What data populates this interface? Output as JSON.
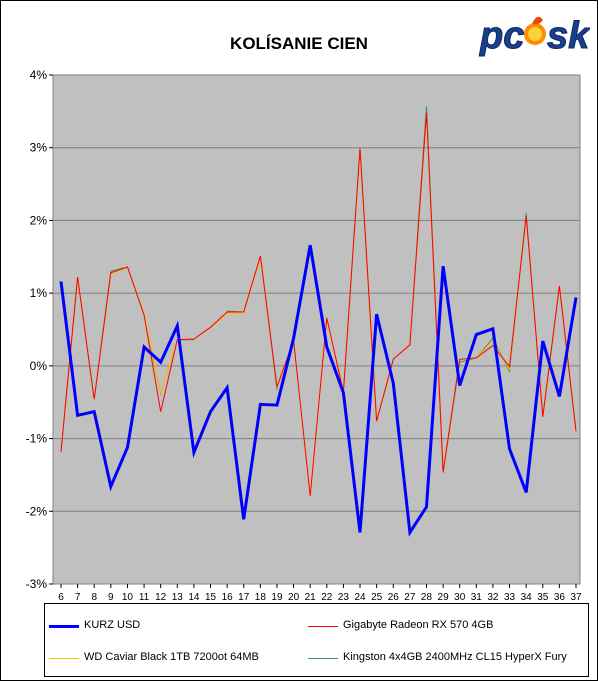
{
  "chart_data": {
    "type": "line",
    "title": "KOLÍSANIE CIEN",
    "logo_text": "pc sk",
    "xlabel": "",
    "ylabel": "",
    "ylim": [
      -3,
      4
    ],
    "y_ticks": [
      "-3%",
      "-2%",
      "-1%",
      "0%",
      "1%",
      "2%",
      "3%",
      "4%"
    ],
    "grid": "horizontal",
    "legend_position": "bottom",
    "categories": [
      "6",
      "7",
      "8",
      "9",
      "10",
      "11",
      "12",
      "13",
      "14",
      "15",
      "16",
      "17",
      "18",
      "19",
      "20",
      "21",
      "22",
      "23",
      "24",
      "25",
      "26",
      "27",
      "28",
      "29",
      "30",
      "31",
      "32",
      "33",
      "34",
      "35",
      "36",
      "37"
    ],
    "series": [
      {
        "name": "KURZ USD",
        "color": "#0000ff",
        "values": [
          1.16,
          -0.68,
          -0.63,
          -1.66,
          -1.12,
          0.26,
          0.05,
          0.55,
          -1.19,
          -0.63,
          -0.3,
          -2.11,
          -0.53,
          -0.54,
          0.38,
          1.66,
          0.26,
          -0.37,
          -2.29,
          0.71,
          -0.24,
          -2.29,
          -1.94,
          1.37,
          -0.27,
          0.43,
          0.51,
          -1.14,
          -1.74,
          0.34,
          -0.42,
          0.94
        ]
      },
      {
        "name": "Gigabyte Radeon RX 570 4GB",
        "color": "#ff0000",
        "values": [
          -1.18,
          1.22,
          -0.46,
          1.28,
          1.36,
          0.7,
          -0.63,
          0.36,
          0.37,
          0.53,
          0.74,
          0.74,
          1.51,
          -0.29,
          0.35,
          -1.79,
          0.66,
          -0.36,
          2.99,
          -0.76,
          0.09,
          0.29,
          3.48,
          -1.46,
          0.09,
          0.11,
          0.28,
          -0.01,
          2.06,
          -0.7,
          1.1,
          -0.9
        ]
      },
      {
        "name": "WD Caviar Black 1TB 7200ot 64MB",
        "color": "#ffc000",
        "values": [
          -1.18,
          1.22,
          -0.46,
          1.26,
          1.35,
          0.72,
          -0.38,
          0.36,
          0.37,
          0.52,
          0.72,
          0.73,
          1.48,
          -0.29,
          0.34,
          -1.76,
          0.64,
          -0.36,
          2.97,
          -0.76,
          0.09,
          0.29,
          3.45,
          -1.46,
          0.09,
          0.11,
          0.34,
          -0.05,
          2.05,
          -0.7,
          1.1,
          -0.9
        ]
      },
      {
        "name": "Kingston 4x4GB 2400MHz CL15 HyperX Fury",
        "color": "#339966",
        "values": [
          -1.18,
          1.22,
          -0.46,
          1.3,
          1.36,
          0.7,
          -0.38,
          0.36,
          0.36,
          null,
          0.75,
          0.74,
          1.51,
          -0.33,
          null,
          null,
          null,
          -0.36,
          2.99,
          -0.76,
          0.09,
          0.29,
          3.57,
          -1.47,
          0.05,
          0.11,
          0.38,
          -0.08,
          2.1,
          -0.7,
          1.1,
          -0.9
        ]
      }
    ]
  }
}
